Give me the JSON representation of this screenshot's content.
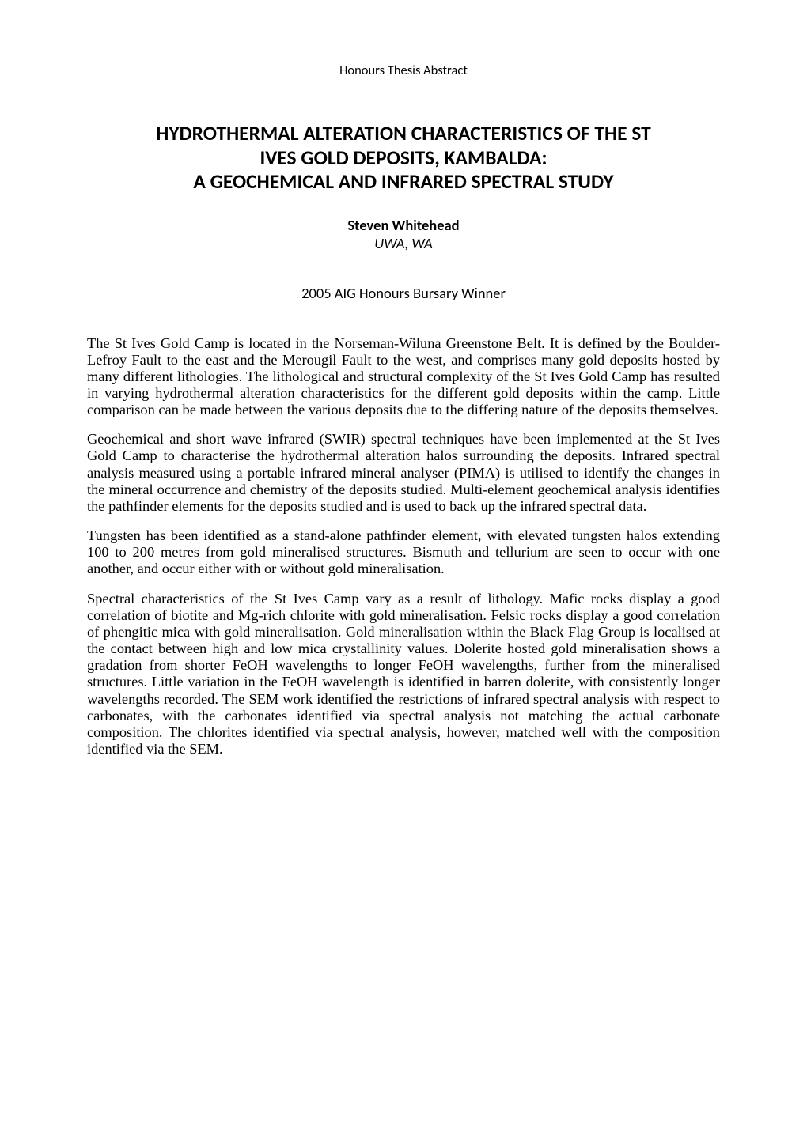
{
  "typography": {
    "heading_font_family": "Calibri, 'Segoe UI', Arial, sans-serif",
    "body_font_family": "'Times New Roman', Times, serif",
    "pre_heading_fontsize_pt": 11,
    "title_fontsize_pt": 17,
    "author_fontsize_pt": 12,
    "body_fontsize_pt": 12,
    "text_color": "#000000",
    "background_color": "#ffffff",
    "body_alignment": "justify",
    "title_weight": 700
  },
  "pre_heading": "Honours Thesis Abstract",
  "title": {
    "line1": "HYDROTHERMAL ALTERATION CHARACTERISTICS OF THE ST",
    "line2": "IVES GOLD DEPOSITS, KAMBALDA:",
    "line3": "A GEOCHEMICAL AND INFRARED SPECTRAL STUDY"
  },
  "author": "Steven Whitehead",
  "affiliation": "UWA, WA",
  "award": "2005 AIG Honours Bursary Winner",
  "paragraphs": {
    "p1": "The St Ives Gold Camp is located in the Norseman-Wiluna Greenstone Belt. It is defined by the Boulder-Lefroy Fault to the east and the Merougil Fault to the west, and comprises many gold deposits hosted by many different lithologies. The lithological and structural complexity of the St Ives Gold Camp has resulted in varying hydrothermal alteration characteristics for the different gold deposits within the camp. Little comparison can be made between the various deposits due to the differing nature of the deposits themselves.",
    "p2": "Geochemical and short wave infrared (SWIR) spectral techniques have been implemented at the St Ives Gold Camp to characterise the hydrothermal alteration halos surrounding the deposits. Infrared spectral analysis measured using a portable infrared mineral analyser (PIMA) is utilised to identify the changes in the mineral occurrence and chemistry of the deposits studied. Multi-element geochemical analysis identifies the pathfinder elements for the deposits studied and is used to back up the infrared spectral data.",
    "p3": "Tungsten has been identified as a stand-alone pathfinder element, with elevated tungsten halos extending 100 to 200 metres from gold mineralised structures. Bismuth and tellurium are seen to occur with one another, and occur either with or without gold mineralisation.",
    "p4": "Spectral characteristics of the St Ives Camp vary as a result of lithology. Mafic rocks display a good correlation of biotite and Mg-rich chlorite with gold mineralisation. Felsic rocks display a good correlation of phengitic mica with gold mineralisation. Gold mineralisation within the Black Flag Group is localised at the contact between high and low mica crystallinity values. Dolerite hosted gold mineralisation shows a gradation from shorter FeOH wavelengths to longer FeOH wavelengths, further from the mineralised structures. Little variation in the FeOH wavelength is identified in barren dolerite, with consistently longer wavelengths recorded. The SEM work identified the restrictions of infrared spectral analysis with respect to carbonates, with the carbonates identified via spectral analysis not matching the actual carbonate composition. The chlorites identified via spectral analysis, however, matched well with the composition identified via the SEM."
  }
}
